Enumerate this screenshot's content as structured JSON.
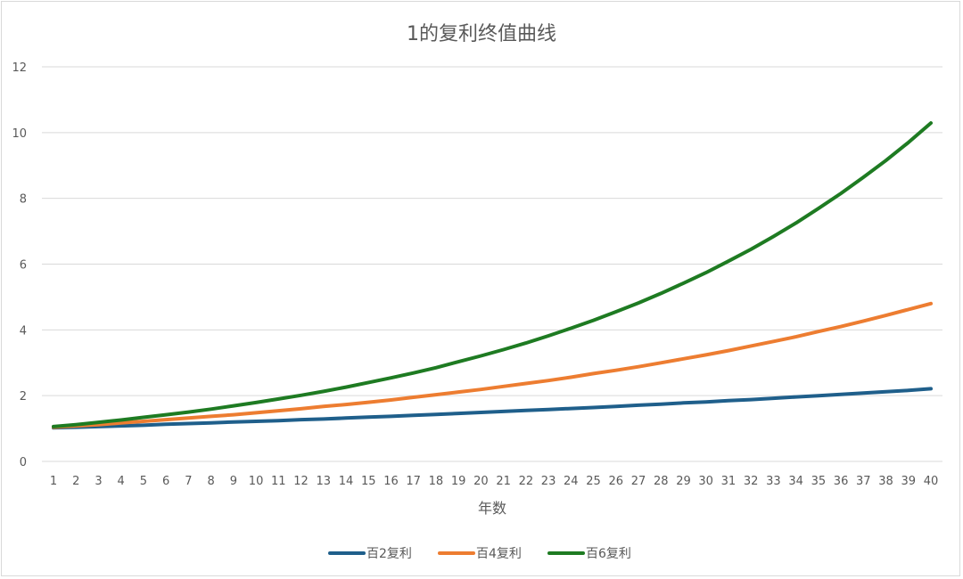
{
  "chart_data": {
    "type": "line",
    "title": "1的复利终值曲线",
    "xlabel": "年数",
    "ylabel": "",
    "ylim": [
      0,
      12
    ],
    "yticks": [
      0,
      2,
      4,
      6,
      8,
      10,
      12
    ],
    "grid": "horizontal",
    "legend_position": "bottom",
    "x": [
      1,
      2,
      3,
      4,
      5,
      6,
      7,
      8,
      9,
      10,
      11,
      12,
      13,
      14,
      15,
      16,
      17,
      18,
      19,
      20,
      21,
      22,
      23,
      24,
      25,
      26,
      27,
      28,
      29,
      30,
      31,
      32,
      33,
      34,
      35,
      36,
      37,
      38,
      39,
      40
    ],
    "series": [
      {
        "name": "百2复利",
        "color": "#1f5f8b",
        "values": [
          1.02,
          1.04,
          1.06,
          1.08,
          1.1,
          1.13,
          1.15,
          1.17,
          1.2,
          1.22,
          1.24,
          1.27,
          1.29,
          1.32,
          1.35,
          1.37,
          1.4,
          1.43,
          1.46,
          1.49,
          1.52,
          1.55,
          1.58,
          1.61,
          1.64,
          1.67,
          1.71,
          1.74,
          1.78,
          1.81,
          1.85,
          1.88,
          1.92,
          1.96,
          2.0,
          2.04,
          2.08,
          2.12,
          2.16,
          2.21
        ]
      },
      {
        "name": "百4复利",
        "color": "#ed7d31",
        "values": [
          1.04,
          1.08,
          1.12,
          1.17,
          1.22,
          1.27,
          1.32,
          1.37,
          1.42,
          1.48,
          1.54,
          1.6,
          1.67,
          1.73,
          1.8,
          1.87,
          1.95,
          2.03,
          2.11,
          2.19,
          2.28,
          2.37,
          2.46,
          2.56,
          2.67,
          2.77,
          2.88,
          3.0,
          3.12,
          3.24,
          3.37,
          3.51,
          3.65,
          3.79,
          3.95,
          4.1,
          4.27,
          4.44,
          4.62,
          4.8
        ]
      },
      {
        "name": "百6复利",
        "color": "#1e7b22",
        "values": [
          1.06,
          1.12,
          1.19,
          1.26,
          1.34,
          1.42,
          1.5,
          1.59,
          1.69,
          1.79,
          1.9,
          2.01,
          2.13,
          2.26,
          2.4,
          2.54,
          2.69,
          2.85,
          3.03,
          3.21,
          3.4,
          3.6,
          3.82,
          4.05,
          4.29,
          4.55,
          4.82,
          5.11,
          5.42,
          5.74,
          6.09,
          6.45,
          6.84,
          7.25,
          7.69,
          8.15,
          8.64,
          9.15,
          9.7,
          10.29
        ]
      }
    ]
  }
}
